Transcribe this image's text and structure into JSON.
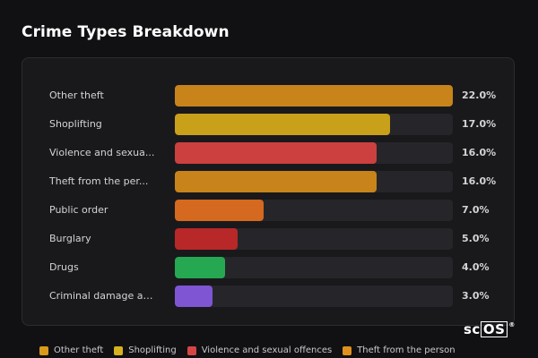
{
  "page": {
    "title": "Crime Types Breakdown"
  },
  "chart_data": {
    "type": "bar",
    "orientation": "horizontal",
    "categories": [
      "Other theft",
      "Shoplifting",
      "Violence and sexua...",
      "Theft from the per...",
      "Public order",
      "Burglary",
      "Drugs",
      "Criminal damage an..."
    ],
    "values": [
      22.0,
      17.0,
      16.0,
      16.0,
      7.0,
      5.0,
      4.0,
      3.0
    ],
    "value_labels": [
      "22.0%",
      "17.0%",
      "16.0%",
      "16.0%",
      "7.0%",
      "5.0%",
      "4.0%",
      "3.0%"
    ],
    "colors": [
      "#c8841a",
      "#c8a01a",
      "#cc4040",
      "#c8841a",
      "#d4691f",
      "#b82828",
      "#26a852",
      "#7f55d4"
    ],
    "xlim": [
      0,
      22
    ],
    "legend_position": "bottom"
  },
  "legend": {
    "items": [
      {
        "label": "Other theft",
        "color": "#d99a1c"
      },
      {
        "label": "Shoplifting",
        "color": "#d6b21e"
      },
      {
        "label": "Violence and sexual offences",
        "color": "#d64545"
      },
      {
        "label": "Theft from the person",
        "color": "#e0901e"
      }
    ]
  },
  "watermark": {
    "prefix": "sc",
    "boxed": "OS",
    "mark": "®"
  }
}
